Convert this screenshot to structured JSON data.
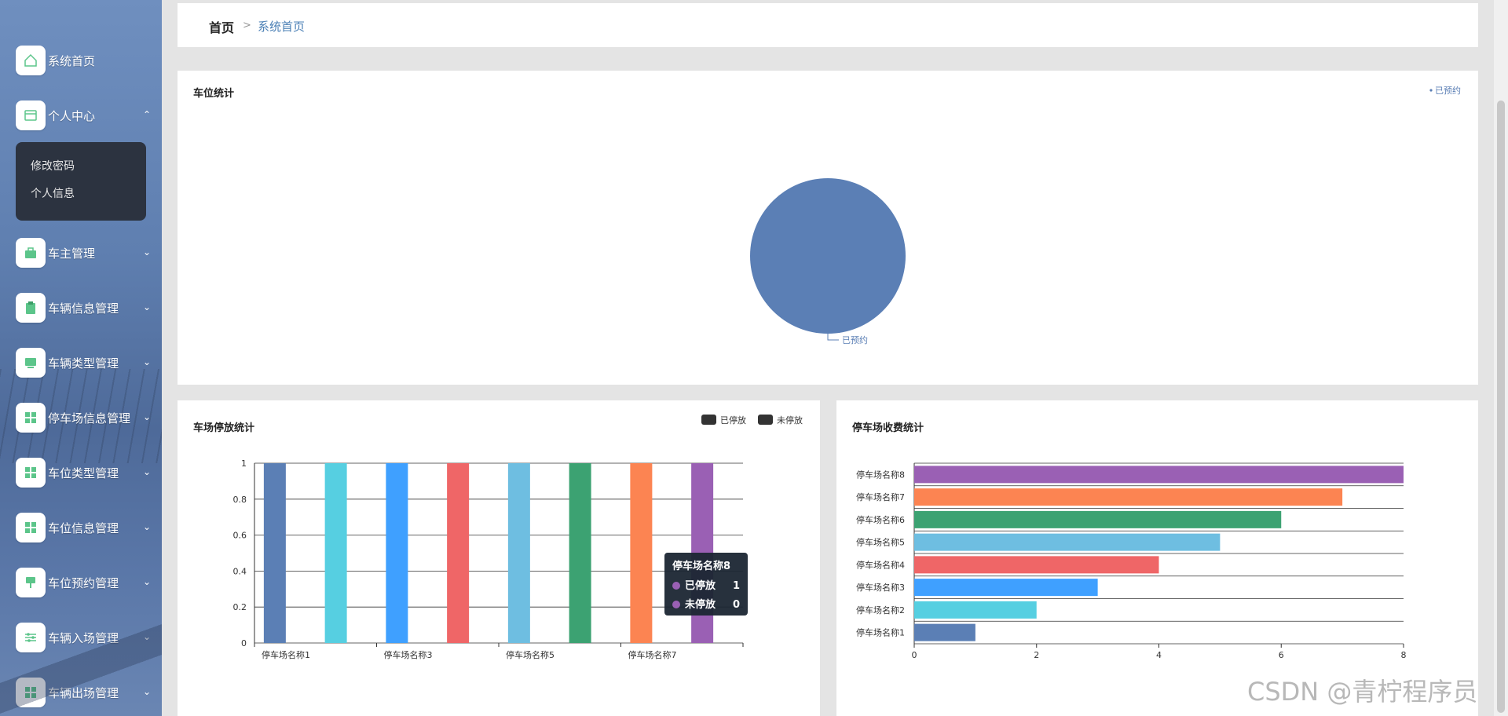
{
  "sidebar": {
    "items": [
      {
        "label": "系统首页",
        "icon": "home-icon",
        "chevron": ""
      },
      {
        "label": "个人中心",
        "icon": "window-icon",
        "chevron": "up"
      },
      {
        "label": "车主管理",
        "icon": "briefcase-icon",
        "chevron": "down"
      },
      {
        "label": "车辆信息管理",
        "icon": "clipboard-icon",
        "chevron": "down"
      },
      {
        "label": "车辆类型管理",
        "icon": "monitor-icon",
        "chevron": "down"
      },
      {
        "label": "停车场信息管理",
        "icon": "grid-icon",
        "chevron": "down"
      },
      {
        "label": "车位类型管理",
        "icon": "grid-icon",
        "chevron": "down"
      },
      {
        "label": "车位信息管理",
        "icon": "grid-icon",
        "chevron": "down"
      },
      {
        "label": "车位预约管理",
        "icon": "pin-icon",
        "chevron": "down"
      },
      {
        "label": "车辆入场管理",
        "icon": "sliders-icon",
        "chevron": "down"
      },
      {
        "label": "车辆出场管理",
        "icon": "grid-icon",
        "chevron": "down"
      }
    ],
    "submenu": [
      "修改密码",
      "个人信息"
    ]
  },
  "breadcrumb": {
    "home": "首页",
    "separator": ">",
    "current": "系统首页"
  },
  "colors": {
    "accent": "#4a7fb5",
    "series": [
      "#5b7fb5",
      "#56cfe1",
      "#3fa0ff",
      "#ef6667",
      "#6ebee1",
      "#3ca272",
      "#fc8452",
      "#9a60b4"
    ]
  },
  "chart_data": [
    {
      "type": "pie",
      "title": "车位统计",
      "legend": [
        "已预约"
      ],
      "legend_position": "top-right",
      "slices": [
        {
          "name": "已预约",
          "value": 1
        }
      ]
    },
    {
      "type": "bar",
      "title": "车场停放统计",
      "legend": [
        "已停放",
        "未停放"
      ],
      "legend_position": "top-right",
      "categories": [
        "停车场名称1",
        "停车场名称2",
        "停车场名称3",
        "停车场名称4",
        "停车场名称5",
        "停车场名称6",
        "停车场名称7",
        "停车场名称8"
      ],
      "x_tick_labels": [
        "停车场名称1",
        "停车场名称3",
        "停车场名称5",
        "停车场名称7"
      ],
      "series": [
        {
          "name": "已停放",
          "values": [
            1,
            1,
            1,
            1,
            1,
            1,
            1,
            1
          ]
        },
        {
          "name": "未停放",
          "values": [
            0,
            0,
            0,
            0,
            0,
            0,
            0,
            0
          ]
        }
      ],
      "yticks": [
        "0",
        "0.2",
        "0.4",
        "0.6",
        "0.8",
        "1"
      ],
      "ylim": [
        0,
        1
      ],
      "tooltip": {
        "title": "停车场名称8",
        "rows": [
          {
            "name": "已停放",
            "value": "1"
          },
          {
            "name": "未停放",
            "value": "0"
          }
        ]
      }
    },
    {
      "type": "bar",
      "orientation": "horizontal",
      "title": "停车场收费统计",
      "categories": [
        "停车场名称1",
        "停车场名称2",
        "停车场名称3",
        "停车场名称4",
        "停车场名称5",
        "停车场名称6",
        "停车场名称7",
        "停车场名称8"
      ],
      "values": [
        1,
        2,
        3,
        4,
        5,
        6,
        7,
        8
      ],
      "xticks": [
        "0",
        "2",
        "4",
        "6",
        "8"
      ],
      "xlim": [
        0,
        8
      ]
    }
  ],
  "watermark": "CSDN @青柠程序员"
}
